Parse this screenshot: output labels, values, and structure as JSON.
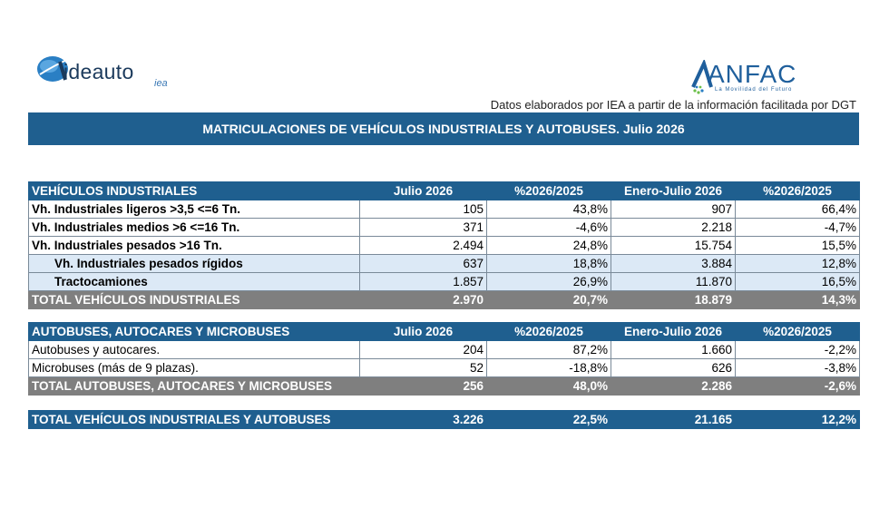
{
  "header": {
    "logo_left": {
      "word": "ideauto",
      "sub": "iea"
    },
    "logo_right": {
      "word": "ANFAC",
      "tagline": "La Movilidad del Futuro"
    },
    "source_note": "Datos elaborados por IEA a partir de la información facilitada por DGT",
    "title": "MATRICULACIONES DE VEHÍCULOS INDUSTRIALES Y AUTOBUSES.  Julio 2026"
  },
  "colors": {
    "header_blue": "#1f5f8f",
    "total_gray": "#7f7f7f",
    "sub_row_fill": "#dce9f6"
  },
  "industrial": {
    "columns": [
      "VEHÍCULOS INDUSTRIALES",
      "Julio 2026",
      "%2026/2025",
      "Enero-Julio 2026",
      "%2026/2025"
    ],
    "rows": [
      [
        "Vh. Industriales ligeros >3,5 <=6 Tn.",
        "105",
        "43,8%",
        "907",
        "66,4%"
      ],
      [
        "Vh. Industriales medios >6  <=16 Tn.",
        "371",
        "-4,6%",
        "2.218",
        "-4,7%"
      ],
      [
        "Vh. Industriales  pesados >16 Tn.",
        "2.494",
        "24,8%",
        "15.754",
        "15,5%"
      ],
      [
        "Vh. Industriales pesados rígidos",
        "637",
        "18,8%",
        "3.884",
        "12,8%"
      ],
      [
        "Tractocamiones",
        "1.857",
        "26,9%",
        "11.870",
        "16,5%"
      ]
    ],
    "total": [
      "TOTAL VEHÍCULOS INDUSTRIALES",
      "2.970",
      "20,7%",
      "18.879",
      "14,3%"
    ]
  },
  "buses": {
    "columns": [
      "AUTOBUSES, AUTOCARES Y MICROBUSES",
      "Julio 2026",
      "%2026/2025",
      "Enero-Julio 2026",
      "%2026/2025"
    ],
    "rows": [
      [
        "Autobuses y autocares.",
        "204",
        "87,2%",
        "1.660",
        "-2,2%"
      ],
      [
        "Microbuses (más de 9 plazas).",
        "52",
        "-18,8%",
        "626",
        "-3,8%"
      ]
    ],
    "total": [
      "TOTAL AUTOBUSES, AUTOCARES Y MICROBUSES",
      "256",
      "48,0%",
      "2.286",
      "-2,6%"
    ]
  },
  "grand_total": [
    "TOTAL VEHÍCULOS INDUSTRIALES Y AUTOBUSES",
    "3.226",
    "22,5%",
    "21.165",
    "12,2%"
  ]
}
